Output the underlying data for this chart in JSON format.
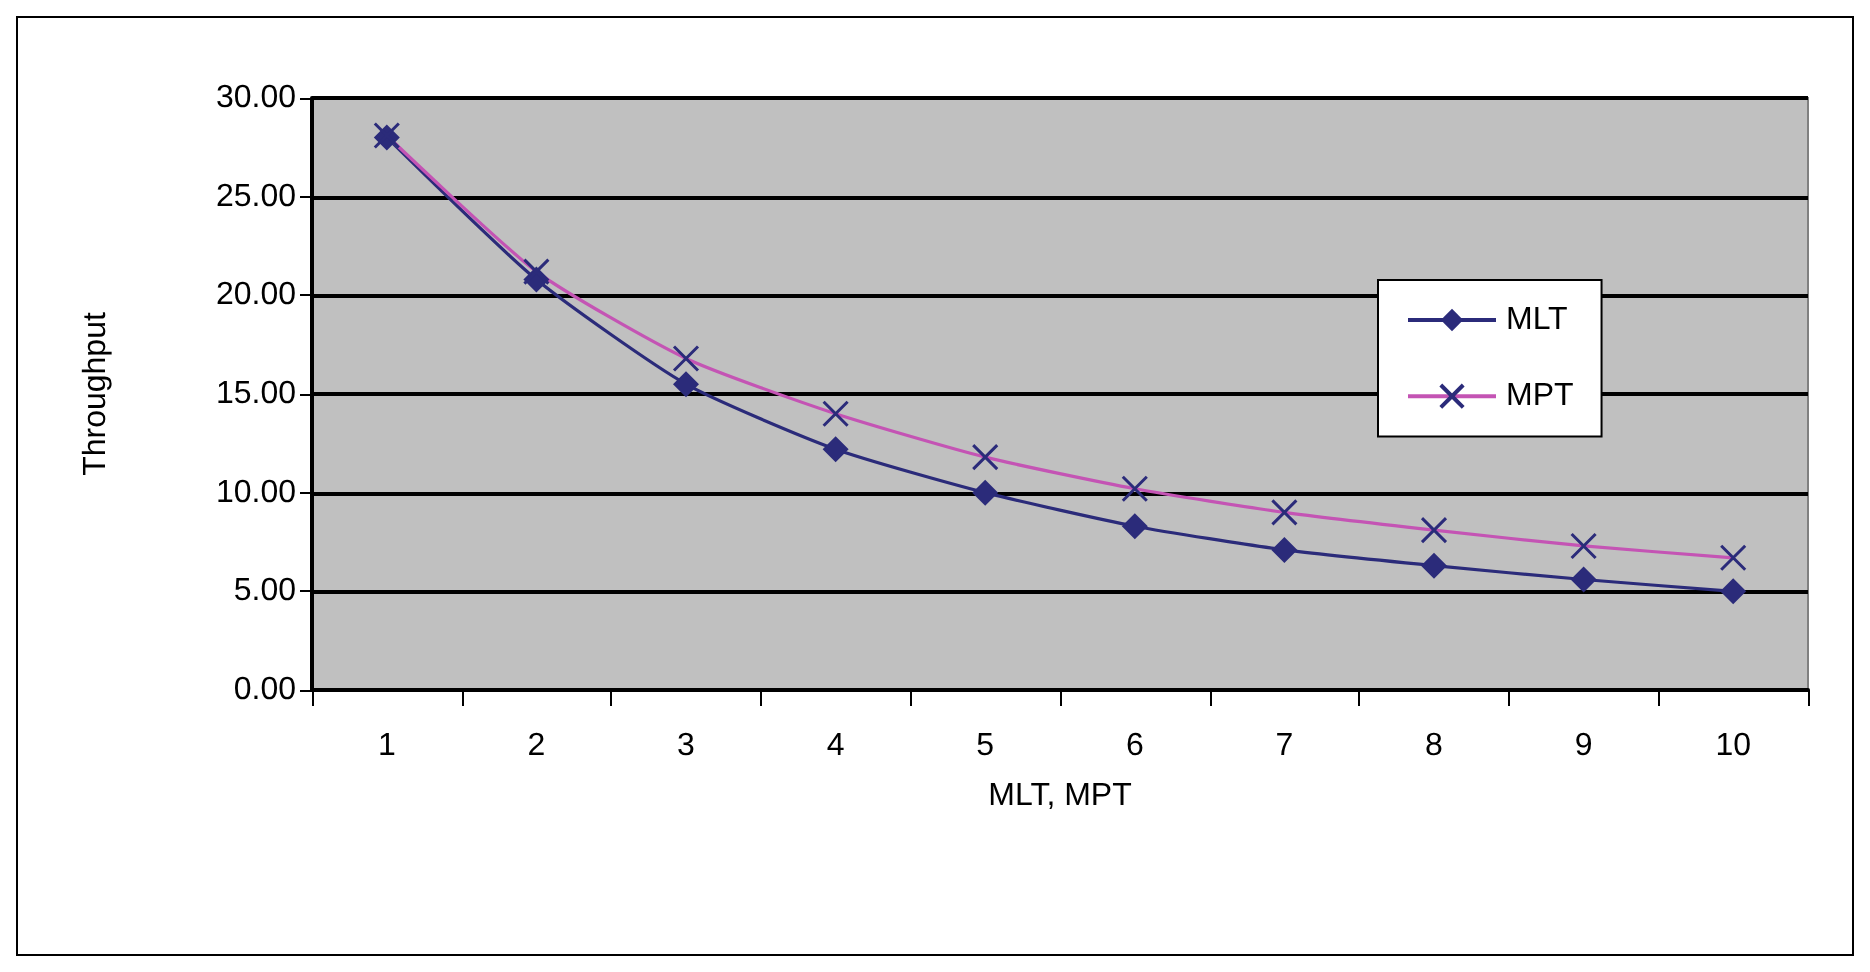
{
  "chart_data": {
    "type": "line",
    "xlabel": "MLT, MPT",
    "ylabel": "Throughput",
    "categories": [
      "1",
      "2",
      "3",
      "4",
      "5",
      "6",
      "7",
      "8",
      "9",
      "10"
    ],
    "series": [
      {
        "name": "MLT",
        "color": "#2b2b7a",
        "marker": "diamond",
        "values": [
          28.0,
          20.8,
          15.5,
          12.2,
          10.0,
          8.3,
          7.1,
          6.3,
          5.6,
          5.0
        ]
      },
      {
        "name": "MPT",
        "color": "#c454b4",
        "marker": "cross",
        "values": [
          28.1,
          21.2,
          16.8,
          14.0,
          11.8,
          10.2,
          9.0,
          8.1,
          7.3,
          6.7
        ]
      }
    ],
    "ylim": [
      0,
      30
    ],
    "yticks": [
      {
        "value": 0,
        "label": "0.00"
      },
      {
        "value": 5,
        "label": "5.00"
      },
      {
        "value": 10,
        "label": "10.00"
      },
      {
        "value": 15,
        "label": "15.00"
      },
      {
        "value": 20,
        "label": "20.00"
      },
      {
        "value": 25,
        "label": "25.00"
      },
      {
        "value": 30,
        "label": "30.00"
      }
    ],
    "grid": "y",
    "legend": "right"
  }
}
